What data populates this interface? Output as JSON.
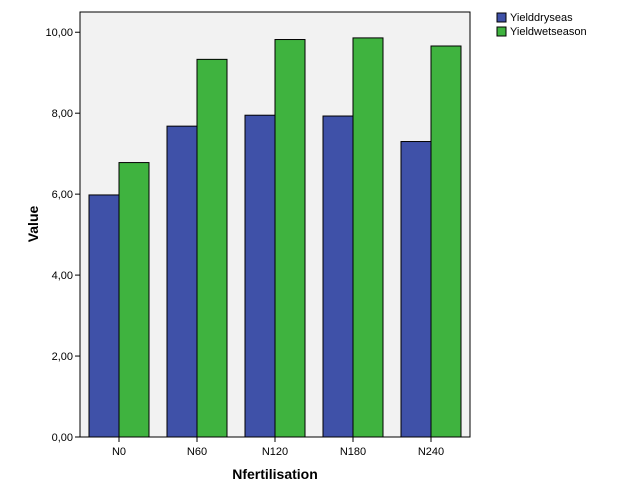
{
  "chart_data": {
    "type": "bar",
    "title": "",
    "xlabel": "Nfertilisation",
    "ylabel": "Value",
    "categories": [
      "N0",
      "N60",
      "N120",
      "N180",
      "N240"
    ],
    "series": [
      {
        "name": "Yielddryseas",
        "color": "#3f51a8",
        "values": [
          5.98,
          7.68,
          7.95,
          7.93,
          7.3
        ]
      },
      {
        "name": "Yieldwetseason",
        "color": "#3fb33f",
        "values": [
          6.78,
          9.33,
          9.82,
          9.86,
          9.66
        ]
      }
    ],
    "ylim": [
      0,
      10.5
    ],
    "yticks": [
      "0,00",
      "2,00",
      "4,00",
      "6,00",
      "8,00",
      "10,00"
    ],
    "ytick_values": [
      0,
      2,
      4,
      6,
      8,
      10
    ],
    "grid": false,
    "legend": "top-right",
    "plot_background": "#f2f2f2"
  }
}
